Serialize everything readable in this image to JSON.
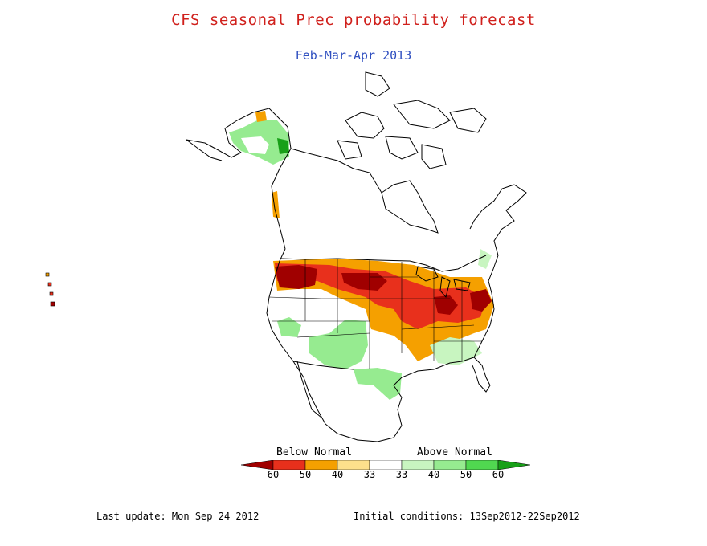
{
  "title": "CFS seasonal Prec probability forecast",
  "subtitle": "Feb-Mar-Apr 2013",
  "legend": {
    "below_label": "Below Normal",
    "above_label": "Above Normal",
    "ticks": [
      "60",
      "50",
      "40",
      "33",
      "33",
      "40",
      "50",
      "60"
    ],
    "colors": {
      "below_60": "#a00000",
      "below_50": "#e8301c",
      "below_40": "#f5a000",
      "below_33": "#fde08c",
      "normal": "#ffffff",
      "above_33": "#c8f5c0",
      "above_40": "#96eb90",
      "above_50": "#50d850",
      "above_60": "#18a018"
    }
  },
  "footer": {
    "last_update": "Last update: Mon Sep 24 2012",
    "initial_conditions": "Initial conditions: 13Sep2012-22Sep2012"
  }
}
